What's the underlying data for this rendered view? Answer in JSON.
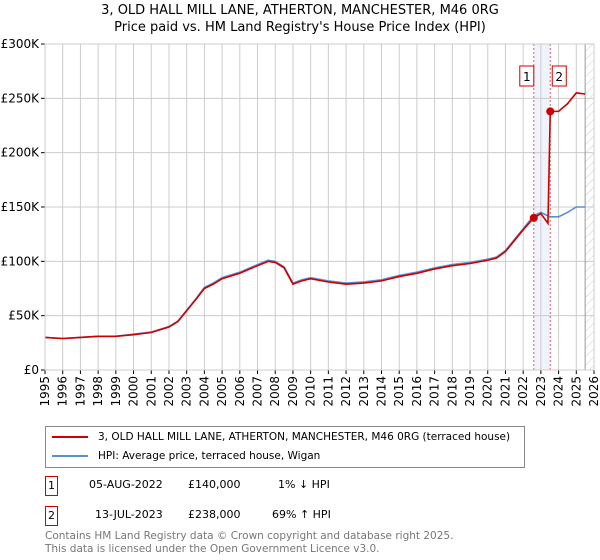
{
  "title": "3, OLD HALL MILL LANE, ATHERTON, MANCHESTER, M46 0RG",
  "subtitle": "Price paid vs. HM Land Registry's House Price Index (HPI)",
  "chart_data": {
    "type": "line",
    "xlim": [
      1995,
      2026
    ],
    "ylim": [
      0,
      300000
    ],
    "x_ticks": [
      "1995",
      "1996",
      "1997",
      "1998",
      "1999",
      "2000",
      "2001",
      "2002",
      "2003",
      "2004",
      "2005",
      "2006",
      "2007",
      "2008",
      "2009",
      "2010",
      "2011",
      "2012",
      "2013",
      "2014",
      "2015",
      "2016",
      "2017",
      "2018",
      "2019",
      "2020",
      "2021",
      "2022",
      "2023",
      "2024",
      "2025",
      "2026"
    ],
    "y_ticks": [
      {
        "v": 0,
        "label": "£0"
      },
      {
        "v": 50000,
        "label": "£50K"
      },
      {
        "v": 100000,
        "label": "£100K"
      },
      {
        "v": 150000,
        "label": "£150K"
      },
      {
        "v": 200000,
        "label": "£200K"
      },
      {
        "v": 250000,
        "label": "£250K"
      },
      {
        "v": 300000,
        "label": "£300K"
      }
    ],
    "grid": true,
    "series": [
      {
        "name": "HPI: Average price, terraced house, Wigan",
        "color": "#5b8fd0",
        "x": [
          1995,
          1996,
          1997,
          1998,
          1999,
          2000,
          2001,
          2002,
          2002.5,
          2003,
          2003.5,
          2004,
          2004.5,
          2005,
          2006,
          2007,
          2007.6,
          2008,
          2008.5,
          2009,
          2009.5,
          2010,
          2011,
          2012,
          2013,
          2014,
          2015,
          2016,
          2017,
          2018,
          2019,
          2020,
          2020.5,
          2021,
          2021.5,
          2022,
          2022.6,
          2023,
          2023.5,
          2024,
          2024.5,
          2025,
          2025.5
        ],
        "y": [
          30000,
          29000,
          30000,
          31000,
          31000,
          33000,
          35000,
          40000,
          45000,
          55000,
          65000,
          76000,
          80000,
          85000,
          90000,
          97000,
          101000,
          100000,
          95000,
          80000,
          83000,
          85000,
          82000,
          80000,
          81000,
          83000,
          87000,
          90000,
          94000,
          97000,
          99000,
          102000,
          104000,
          110000,
          120000,
          130000,
          142000,
          145000,
          141000,
          141000,
          145000,
          150000,
          150000
        ]
      },
      {
        "name": "3, OLD HALL MILL LANE, ATHERTON, MANCHESTER, M46 0RG (terraced house)",
        "color": "#cc0000",
        "x": [
          1995,
          1996,
          1997,
          1998,
          1999,
          2000,
          2001,
          2002,
          2002.5,
          2003,
          2003.5,
          2004,
          2004.5,
          2005,
          2006,
          2007,
          2007.6,
          2008,
          2008.5,
          2009,
          2009.5,
          2010,
          2011,
          2012,
          2013,
          2014,
          2015,
          2016,
          2017,
          2018,
          2019,
          2020,
          2020.5,
          2021,
          2021.5,
          2022,
          2022.6,
          2023,
          2023.4,
          2023.53,
          2024,
          2024.5,
          2025,
          2025.5
        ],
        "y": [
          30000,
          29000,
          30000,
          31000,
          31000,
          32500,
          34500,
          39500,
          44500,
          54500,
          64500,
          75000,
          79000,
          84000,
          89000,
          96000,
          100000,
          99000,
          94000,
          79000,
          82000,
          84000,
          81000,
          79000,
          80000,
          82000,
          86000,
          89000,
          93000,
          96000,
          98000,
          101000,
          103000,
          109000,
          119000,
          129000,
          140000,
          144000,
          135000,
          238000,
          238000,
          245000,
          255000,
          254000
        ]
      }
    ],
    "sales": [
      {
        "label": "1",
        "x": 2022.6,
        "y": 140000
      },
      {
        "label": "2",
        "x": 2023.53,
        "y": 238000
      }
    ],
    "forecast_from": 2025.5
  },
  "legend": {
    "property": "3, OLD HALL MILL LANE, ATHERTON, MANCHESTER, M46 0RG (terraced house)",
    "hpi": "HPI: Average price, terraced house, Wigan"
  },
  "transactions": [
    {
      "num": "1",
      "date": "05-AUG-2022",
      "price": "£140,000",
      "hpi": "1% ↓ HPI"
    },
    {
      "num": "2",
      "date": "13-JUL-2023",
      "price": "£238,000",
      "hpi": "69% ↑ HPI"
    }
  ],
  "footer": {
    "line1": "Contains HM Land Registry data © Crown copyright and database right 2025.",
    "line2": "This data is licensed under the Open Government Licence v3.0."
  }
}
